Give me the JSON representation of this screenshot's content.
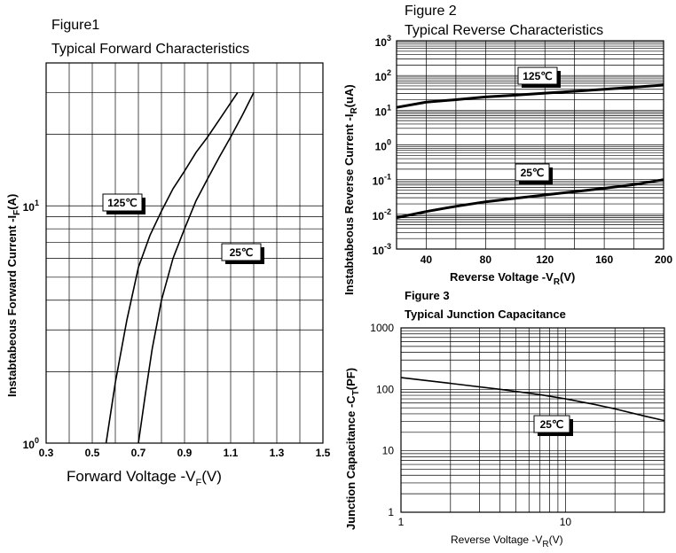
{
  "chart_data": [
    {
      "type": "line",
      "figure_label": "Figure1",
      "title": "Typical Forward Characteristics",
      "xlabel": "Forward Voltage -V",
      "xlabel_sub": "F",
      "xlabel_tail": "(V)",
      "ylabel": "Instabtabeous Forward Current -I",
      "ylabel_sub": "F",
      "ylabel_tail": "(A)",
      "xlim": [
        0.3,
        1.5
      ],
      "ylim": [
        1,
        40
      ],
      "yscale": "log",
      "xticks": [
        "0.3",
        "0.5",
        "0.7",
        "0.9",
        "1.1",
        "1.3",
        "1.5"
      ],
      "yticks": [
        {
          "base": "10",
          "exp": "0",
          "value": 1
        },
        {
          "base": "10",
          "exp": "1",
          "value": 10
        }
      ],
      "grid": true,
      "series": [
        {
          "name": "125℃",
          "x": [
            0.56,
            0.6,
            0.65,
            0.7,
            0.75,
            0.8,
            0.85,
            0.9,
            0.95,
            1.0,
            1.05,
            1.13
          ],
          "y": [
            1.0,
            1.8,
            3.3,
            5.5,
            7.5,
            9.5,
            11.8,
            14.0,
            16.8,
            19.5,
            23.0,
            30.0
          ]
        },
        {
          "name": "25℃",
          "x": [
            0.7,
            0.73,
            0.76,
            0.8,
            0.85,
            0.9,
            0.95,
            1.0,
            1.05,
            1.1,
            1.15,
            1.2
          ],
          "y": [
            1.0,
            1.6,
            2.5,
            4.0,
            6.0,
            8.0,
            10.5,
            13.0,
            16.0,
            19.5,
            24.0,
            30.0
          ]
        }
      ]
    },
    {
      "type": "line",
      "figure_label": "Figure 2",
      "title": "Typical Reverse Characteristics",
      "xlabel": "Reverse  Voltage -V",
      "xlabel_sub": "R",
      "xlabel_tail": "(V)",
      "ylabel": "Instabtabeous Reverse Current -I",
      "ylabel_sub": "R",
      "ylabel_tail": "(uA)",
      "xlim": [
        20,
        200
      ],
      "ylim": [
        0.001,
        1000
      ],
      "yscale": "log",
      "xticks": [
        "40",
        "80",
        "120",
        "160",
        "200"
      ],
      "yticks": [
        {
          "base": "10",
          "exp": "3",
          "value": 1000
        },
        {
          "base": "10",
          "exp": "2",
          "value": 100
        },
        {
          "base": "10",
          "exp": "1",
          "value": 10
        },
        {
          "base": "10",
          "exp": "0",
          "value": 1
        },
        {
          "base": "10",
          "exp": "-1",
          "value": 0.1
        },
        {
          "base": "10",
          "exp": "-2",
          "value": 0.01
        },
        {
          "base": "10",
          "exp": "-3",
          "value": 0.001
        }
      ],
      "grid": true,
      "series": [
        {
          "name": "125℃",
          "x": [
            20,
            40,
            60,
            80,
            100,
            120,
            140,
            160,
            180,
            200
          ],
          "y": [
            12,
            17,
            20,
            24,
            27,
            31,
            35,
            40,
            46,
            53
          ]
        },
        {
          "name": "25℃",
          "x": [
            20,
            40,
            60,
            80,
            100,
            120,
            140,
            160,
            180,
            200
          ],
          "y": [
            0.008,
            0.012,
            0.017,
            0.023,
            0.029,
            0.036,
            0.045,
            0.056,
            0.072,
            0.1
          ]
        }
      ]
    },
    {
      "type": "line",
      "figure_label": "Figure 3",
      "title": "Typical Junction Capacitance",
      "xlabel": "Reverse Voltage -V",
      "xlabel_sub": "R",
      "xlabel_tail": "(V)",
      "ylabel": "Junction Capacitance -C",
      "ylabel_sub": "T",
      "ylabel_tail": "(PF)",
      "xlim": [
        1,
        40
      ],
      "ylim": [
        1,
        1000
      ],
      "xscale": "log",
      "yscale": "log",
      "xticks": [
        {
          "label": "1",
          "value": 1
        },
        {
          "label": "10",
          "value": 10
        }
      ],
      "yticks": [
        {
          "label": "1000",
          "value": 1000
        },
        {
          "label": "100",
          "value": 100
        },
        {
          "label": "10",
          "value": 10
        },
        {
          "label": "1",
          "value": 1
        }
      ],
      "grid": true,
      "series": [
        {
          "name": "25℃",
          "x": [
            1,
            2,
            4,
            7,
            10,
            15,
            20,
            30,
            40
          ],
          "y": [
            155,
            125,
            100,
            82,
            70,
            57,
            48,
            37,
            31
          ]
        }
      ]
    }
  ]
}
